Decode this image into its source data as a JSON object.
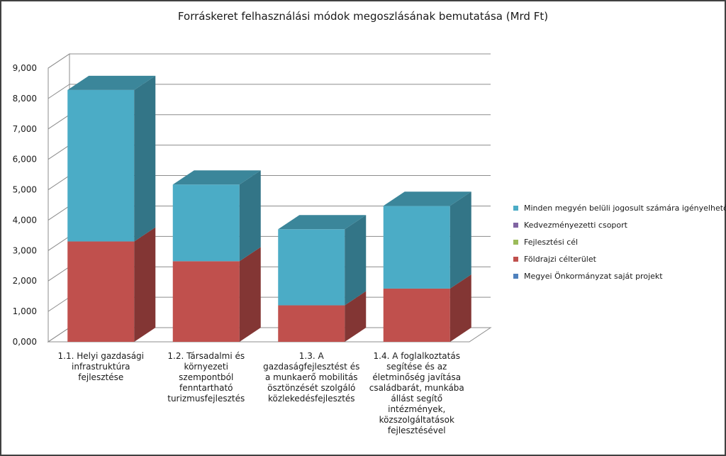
{
  "chart_data": {
    "type": "bar",
    "stacked": true,
    "three_d": true,
    "title": "Forráskeret felhasználási módok megoszlásának bemutatása (Mrd Ft)",
    "categories": [
      [
        "1.1. Helyi gazdasági",
        "infrastruktúra",
        "fejlesztése"
      ],
      [
        "1.2. Társadalmi és",
        "környezeti",
        "szempontból",
        "fenntartható",
        "turizmusfejlesztés"
      ],
      [
        "1.3. A",
        "gazdaságfejlesztést és",
        "a munkaerő mobilitás",
        "ösztönzését szolgáló",
        "közlekedésfejlesztés"
      ],
      [
        "1.4. A foglalkoztatás",
        "segítése és az",
        "életminőség javítása",
        "családbarát, munkába",
        "állást segítő",
        "intézmények,",
        "közszolgáltatások",
        "fejlesztésével"
      ]
    ],
    "series": [
      {
        "name": "Megyei Önkormányzat saját projekt",
        "color": "#4F81BD",
        "values": [
          0,
          0,
          0,
          0
        ]
      },
      {
        "name": "Földrajzi célterület",
        "color": "#C0504D",
        "values": [
          3.3,
          2.65,
          1.2,
          1.75
        ]
      },
      {
        "name": "Fejlesztési cél",
        "color": "#9BBB59",
        "values": [
          0,
          0,
          0,
          0
        ]
      },
      {
        "name": "Kedvezményezetti csoport",
        "color": "#8064A2",
        "values": [
          0,
          0,
          0,
          0
        ]
      },
      {
        "name": "Minden megyén belüli jogosult számára igényelhető",
        "color": "#4BACC6",
        "values": [
          4.98,
          2.52,
          2.5,
          2.72
        ]
      }
    ],
    "ylim": [
      0,
      9
    ],
    "yticks": [
      "0,000",
      "1,000",
      "2,000",
      "3,000",
      "4,000",
      "5,000",
      "6,000",
      "7,000",
      "8,000",
      "9,000"
    ],
    "grid": true,
    "legend_position": "right"
  }
}
